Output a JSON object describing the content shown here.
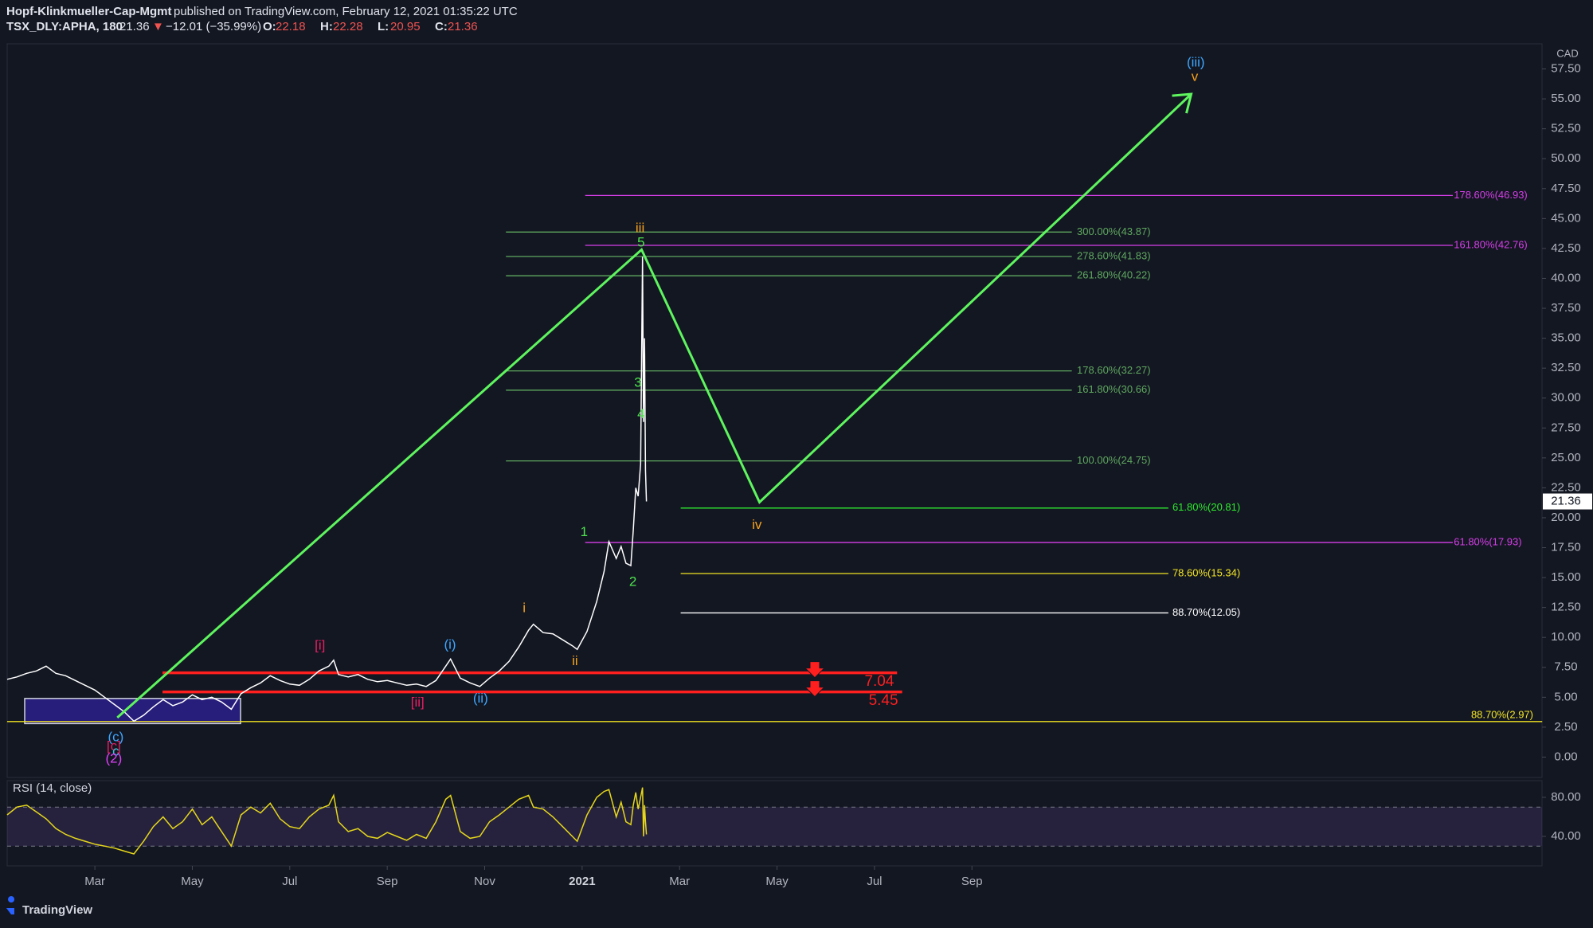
{
  "header": {
    "author": "Hopf-Klinkmueller-Cap-Mgmt",
    "published": "published on TradingView.com, February 12, 2021 01:35:22 UTC",
    "symbol": "TSX_DLY:APHA, 180",
    "price": "21.36",
    "change": "−12.01 (−35.99%)",
    "ohlc": [
      {
        "k": "O:",
        "v": "22.18"
      },
      {
        "k": "H:",
        "v": "22.28"
      },
      {
        "k": "L:",
        "v": "20.95"
      },
      {
        "k": "C:",
        "v": "21.36"
      }
    ]
  },
  "brand": "TradingView",
  "chart_data": {
    "type": "line",
    "currency": "CAD",
    "color": "#ffffff",
    "last_price": 21.36,
    "x": [
      0.2,
      0.4,
      0.6,
      0.8,
      1.0,
      1.2,
      1.4,
      1.6,
      1.8,
      2.0,
      2.2,
      2.4,
      2.6,
      2.8,
      3.0,
      3.2,
      3.4,
      3.6,
      3.8,
      4.0,
      4.2,
      4.4,
      4.6,
      4.8,
      5.0,
      5.2,
      5.4,
      5.6,
      5.8,
      6.0,
      6.2,
      6.4,
      6.6,
      6.8,
      6.9,
      7.0,
      7.2,
      7.4,
      7.6,
      7.8,
      8.0,
      8.2,
      8.4,
      8.6,
      8.8,
      9.0,
      9.2,
      9.3,
      9.5,
      9.7,
      9.9,
      10.1,
      10.3,
      10.5,
      10.7,
      10.9,
      11.0,
      11.2,
      11.4,
      11.6,
      11.8,
      11.9,
      12.1,
      12.3,
      12.45,
      12.55,
      12.7,
      12.8,
      12.9,
      13.0,
      13.05,
      13.1,
      13.15,
      13.2,
      13.24,
      13.26,
      13.28,
      13.3,
      13.32
    ],
    "values": [
      6.5,
      6.7,
      7.0,
      7.2,
      7.6,
      7.0,
      6.8,
      6.4,
      6.0,
      5.6,
      5.0,
      4.4,
      3.8,
      3.0,
      3.5,
      4.2,
      4.8,
      4.3,
      4.6,
      5.2,
      4.8,
      5.0,
      4.6,
      4.0,
      5.3,
      5.8,
      6.2,
      6.8,
      6.4,
      6.1,
      6.0,
      6.5,
      7.2,
      7.6,
      8.1,
      6.9,
      6.7,
      6.9,
      6.5,
      6.3,
      6.4,
      6.2,
      6.0,
      6.1,
      5.9,
      6.4,
      7.6,
      8.2,
      6.6,
      6.2,
      5.9,
      6.6,
      7.2,
      8.0,
      9.2,
      10.6,
      11.1,
      10.4,
      10.3,
      9.8,
      9.3,
      9.0,
      10.5,
      13.0,
      15.5,
      18.0,
      16.6,
      17.6,
      16.2,
      16.0,
      19.0,
      22.5,
      21.8,
      24.5,
      41.8,
      28.0,
      35.0,
      24.0,
      21.36
    ],
    "xlim": [
      0.2,
      31.7
    ],
    "xticks": [
      {
        "value": 2,
        "label": "Mar"
      },
      {
        "value": 4,
        "label": "May"
      },
      {
        "value": 6,
        "label": "Jul"
      },
      {
        "value": 8,
        "label": "Sep"
      },
      {
        "value": 10,
        "label": "Nov"
      },
      {
        "value": 12,
        "label": "2021"
      },
      {
        "value": 14,
        "label": "Mar"
      },
      {
        "value": 16,
        "label": "May"
      },
      {
        "value": 18,
        "label": "Jul"
      },
      {
        "value": 20,
        "label": "Sep"
      }
    ],
    "ylim": [
      -1.7,
      59.6
    ],
    "yticks": [
      {
        "value": 0,
        "label": "0.00"
      },
      {
        "value": 2.5,
        "label": "2.50"
      },
      {
        "value": 5,
        "label": "5.00"
      },
      {
        "value": 7.5,
        "label": "7.50"
      },
      {
        "value": 10,
        "label": "10.00"
      },
      {
        "value": 12.5,
        "label": "12.50"
      },
      {
        "value": 15,
        "label": "15.00"
      },
      {
        "value": 17.5,
        "label": "17.50"
      },
      {
        "value": 20,
        "label": "20.00"
      },
      {
        "value": 22.5,
        "label": "22.50"
      },
      {
        "value": 25,
        "label": "25.00"
      },
      {
        "value": 27.5,
        "label": "27.50"
      },
      {
        "value": 30,
        "label": "30.00"
      },
      {
        "value": 32.5,
        "label": "32.50"
      },
      {
        "value": 35,
        "label": "35.00"
      },
      {
        "value": 37.5,
        "label": "37.50"
      },
      {
        "value": 40,
        "label": "40.00"
      },
      {
        "value": 42.5,
        "label": "42.50"
      },
      {
        "value": 45,
        "label": "45.00"
      },
      {
        "value": 47.5,
        "label": "47.50"
      },
      {
        "value": 50,
        "label": "50.00"
      },
      {
        "value": 52.5,
        "label": "52.50"
      },
      {
        "value": 55,
        "label": "55.00"
      },
      {
        "value": 57.5,
        "label": "57.50"
      }
    ],
    "zone": {
      "x": [
        0.56,
        4.99
      ],
      "y": [
        2.8,
        4.9
      ]
    },
    "projection": {
      "color": "#5ef55e",
      "x": [
        2.46,
        13.22,
        15.64,
        24.5
      ],
      "y": [
        3.3,
        42.4,
        21.3,
        55.4
      ]
    },
    "levels": [
      {
        "value": 7.04,
        "color": "#ff1f1f"
      },
      {
        "value": 5.45,
        "color": "#ff1f1f"
      }
    ],
    "fibs": [
      {
        "label": "178.60%(46.93)",
        "value": 46.93,
        "color": "#d63ee8"
      },
      {
        "label": "161.80%(42.76)",
        "value": 42.76,
        "color": "#d63ee8"
      },
      {
        "label": "61.80%(17.93)",
        "value": 17.93,
        "color": "#d63ee8"
      },
      {
        "label": "300.00%(43.87)",
        "value": 43.87,
        "color": "#5fa85f"
      },
      {
        "label": "278.60%(41.83)",
        "value": 41.83,
        "color": "#5fa85f"
      },
      {
        "label": "261.80%(40.22)",
        "value": 40.22,
        "color": "#5fa85f"
      },
      {
        "label": "178.60%(32.27)",
        "value": 32.27,
        "color": "#5fa85f"
      },
      {
        "label": "161.80%(30.66)",
        "value": 30.66,
        "color": "#5fa85f"
      },
      {
        "label": "100.00%(24.75)",
        "value": 24.75,
        "color": "#5fa85f"
      },
      {
        "label": "61.80%(20.81)",
        "value": 20.81,
        "color": "#2ee82e"
      },
      {
        "label": "78.60%(15.34)",
        "value": 15.34,
        "color": "#f2e422"
      },
      {
        "label": "88.70%(12.05)",
        "value": 12.05,
        "color": "#ffffff"
      },
      {
        "label": "88.70%(2.97)",
        "value": 2.97,
        "color": "#f2e422"
      }
    ],
    "waves": [
      {
        "text": "(iii)",
        "color": "#3ea6ff"
      },
      {
        "text": "v",
        "color": "#f7a21b"
      },
      {
        "text": "iii",
        "color": "#f7a21b"
      },
      {
        "text": "5",
        "color": "#4ee44e"
      },
      {
        "text": "3",
        "color": "#4ee44e"
      },
      {
        "text": "4",
        "color": "#4ee44e"
      },
      {
        "text": "1",
        "color": "#4ee44e"
      },
      {
        "text": "2",
        "color": "#4ee44e"
      },
      {
        "text": "iv",
        "color": "#f7a21b"
      },
      {
        "text": "i",
        "color": "#f7a21b"
      },
      {
        "text": "ii",
        "color": "#f7a21b"
      },
      {
        "text": "[i]",
        "color": "#e91e63"
      },
      {
        "text": "[ii]",
        "color": "#e91e63"
      },
      {
        "text": "(i)",
        "color": "#3ea6ff"
      },
      {
        "text": "(ii)",
        "color": "#3ea6ff"
      },
      {
        "text": "(c)",
        "color": "#3ea6ff"
      },
      {
        "text": "[c]",
        "color": "#e91e63"
      },
      {
        "text": "c",
        "color": "#26c6da"
      },
      {
        "text": "(2)",
        "color": "#e040fb"
      }
    ],
    "rsi": {
      "title": "RSI (14, close)",
      "color": "#e6d71a",
      "bands": [
        30,
        70
      ],
      "values": [
        62,
        70,
        72,
        65,
        58,
        48,
        42,
        38,
        35,
        32,
        30,
        28,
        25,
        22,
        35,
        50,
        60,
        48,
        55,
        68,
        52,
        60,
        45,
        30,
        62,
        70,
        64,
        74,
        58,
        50,
        48,
        60,
        68,
        72,
        82,
        55,
        45,
        48,
        40,
        38,
        44,
        40,
        36,
        42,
        38,
        55,
        78,
        82,
        45,
        38,
        40,
        55,
        62,
        70,
        78,
        82,
        70,
        68,
        60,
        50,
        40,
        35,
        62,
        80,
        86,
        88,
        60,
        75,
        55,
        52,
        72,
        85,
        68,
        80,
        90,
        40,
        72,
        55,
        42
      ],
      "ylim": [
        9.8,
        97.1
      ],
      "yticks": [
        {
          "value": 40,
          "label": "40.00"
        },
        {
          "value": 80,
          "label": "80.00"
        }
      ]
    }
  }
}
